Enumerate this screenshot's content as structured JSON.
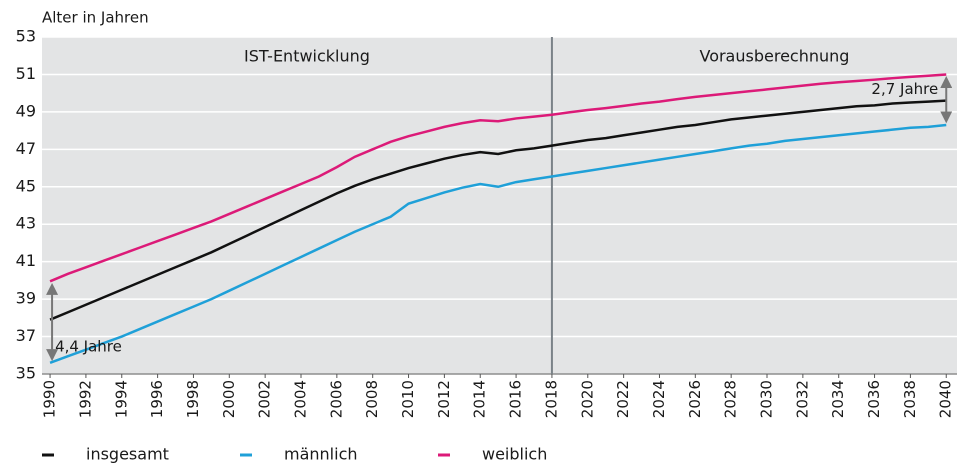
{
  "chart_data": {
    "type": "line",
    "ylabel": "Alter in Jahren",
    "x": [
      1990,
      1991,
      1992,
      1993,
      1994,
      1995,
      1996,
      1997,
      1998,
      1999,
      2000,
      2001,
      2002,
      2003,
      2004,
      2005,
      2006,
      2007,
      2008,
      2009,
      2010,
      2011,
      2012,
      2013,
      2014,
      2015,
      2016,
      2017,
      2018,
      2019,
      2020,
      2021,
      2022,
      2023,
      2024,
      2025,
      2026,
      2027,
      2028,
      2029,
      2030,
      2031,
      2032,
      2033,
      2034,
      2035,
      2036,
      2037,
      2038,
      2039,
      2040
    ],
    "series": [
      {
        "name": "insgesamt",
        "color": "#111111",
        "values": [
          37.9,
          38.3,
          38.7,
          39.1,
          39.5,
          39.9,
          40.3,
          40.7,
          41.1,
          41.5,
          41.95,
          42.4,
          42.85,
          43.3,
          43.75,
          44.2,
          44.65,
          45.05,
          45.4,
          45.7,
          46.0,
          46.25,
          46.5,
          46.7,
          46.85,
          46.75,
          46.95,
          47.05,
          47.2,
          47.35,
          47.5,
          47.6,
          47.75,
          47.9,
          48.05,
          48.2,
          48.3,
          48.45,
          48.6,
          48.7,
          48.8,
          48.9,
          49.0,
          49.1,
          49.2,
          49.3,
          49.35,
          49.45,
          49.5,
          49.55,
          49.6
        ]
      },
      {
        "name": "männlich",
        "color": "#1fa0d8",
        "values": [
          35.6,
          35.95,
          36.3,
          36.65,
          37.0,
          37.4,
          37.8,
          38.2,
          38.6,
          39.0,
          39.45,
          39.9,
          40.35,
          40.8,
          41.25,
          41.7,
          42.15,
          42.6,
          43.0,
          43.4,
          44.1,
          44.4,
          44.7,
          44.95,
          45.15,
          45.0,
          45.25,
          45.4,
          45.55,
          45.7,
          45.85,
          46.0,
          46.15,
          46.3,
          46.45,
          46.6,
          46.75,
          46.9,
          47.05,
          47.2,
          47.3,
          47.45,
          47.55,
          47.65,
          47.75,
          47.85,
          47.95,
          48.05,
          48.15,
          48.2,
          48.3
        ]
      },
      {
        "name": "weiblich",
        "color": "#dc1a78",
        "values": [
          39.95,
          40.35,
          40.7,
          41.05,
          41.4,
          41.75,
          42.1,
          42.45,
          42.8,
          43.15,
          43.55,
          43.95,
          44.35,
          44.75,
          45.15,
          45.55,
          46.05,
          46.6,
          47.0,
          47.4,
          47.7,
          47.95,
          48.2,
          48.4,
          48.55,
          48.5,
          48.65,
          48.75,
          48.85,
          48.98,
          49.1,
          49.2,
          49.32,
          49.45,
          49.55,
          49.68,
          49.8,
          49.9,
          50.0,
          50.1,
          50.2,
          50.3,
          50.4,
          50.5,
          50.58,
          50.65,
          50.72,
          50.8,
          50.87,
          50.93,
          51.0
        ]
      }
    ],
    "xlim": [
      1989.55,
      2040.6
    ],
    "ylim": [
      35,
      53
    ],
    "xticks": [
      1990,
      1992,
      1994,
      1996,
      1998,
      2000,
      2002,
      2004,
      2006,
      2008,
      2010,
      2012,
      2014,
      2016,
      2018,
      2020,
      2022,
      2024,
      2026,
      2028,
      2030,
      2032,
      2034,
      2036,
      2038,
      2040
    ],
    "yticks": [
      35,
      37,
      39,
      41,
      43,
      45,
      47,
      49,
      51,
      53
    ],
    "grid": true,
    "divider": 2018,
    "periods": [
      "IST-Entwicklung",
      "Vorausberechnung"
    ],
    "annotations": [
      {
        "text": "4,4 Jahre",
        "x": 1990
      },
      {
        "text": "2,7 Jahre",
        "x": 2040
      }
    ],
    "legend": "bottom"
  }
}
